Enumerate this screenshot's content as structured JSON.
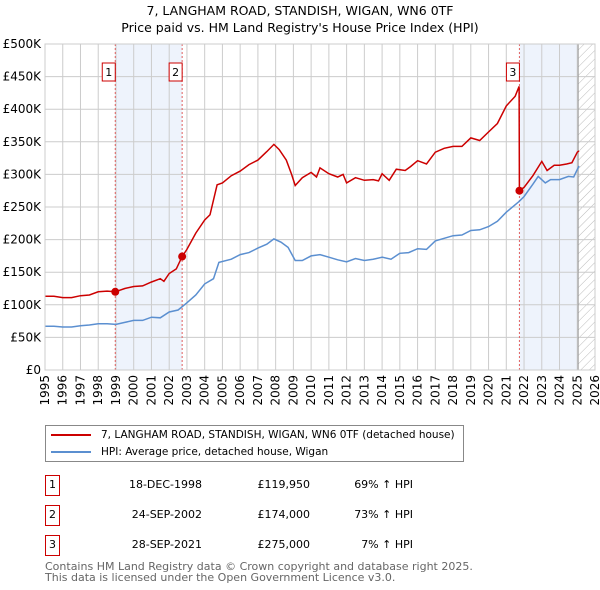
{
  "chart_data": {
    "type": "line",
    "title": "7, LANGHAM ROAD, STANDISH, WIGAN, WN6 0TF",
    "subtitle": "Price paid vs. HM Land Registry's House Price Index (HPI)",
    "xlim": [
      1995,
      2026
    ],
    "ylim": [
      0,
      500000
    ],
    "x_ticks": [
      "1995",
      "1996",
      "1997",
      "1998",
      "1999",
      "2000",
      "2001",
      "2002",
      "2003",
      "2004",
      "2005",
      "2006",
      "2007",
      "2008",
      "2009",
      "2010",
      "2011",
      "2012",
      "2013",
      "2014",
      "2015",
      "2016",
      "2017",
      "2018",
      "2019",
      "2020",
      "2021",
      "2022",
      "2023",
      "2024",
      "2025",
      "2026"
    ],
    "y_ticks": [
      {
        "v": 0,
        "label": "£0"
      },
      {
        "v": 50000,
        "label": "£50K"
      },
      {
        "v": 100000,
        "label": "£100K"
      },
      {
        "v": 150000,
        "label": "£150K"
      },
      {
        "v": 200000,
        "label": "£200K"
      },
      {
        "v": 250000,
        "label": "£250K"
      },
      {
        "v": 300000,
        "label": "£300K"
      },
      {
        "v": 350000,
        "label": "£350K"
      },
      {
        "v": 400000,
        "label": "£400K"
      },
      {
        "v": 450000,
        "label": "£450K"
      },
      {
        "v": 500000,
        "label": "£500K"
      }
    ],
    "grid": true,
    "series": [
      {
        "name": "7, LANGHAM ROAD, STANDISH, WIGAN, WN6 0TF (detached house)",
        "color": "#cc0000",
        "points": [
          [
            1995,
            113
          ],
          [
            1995.5,
            113
          ],
          [
            1996,
            111
          ],
          [
            1996.5,
            111
          ],
          [
            1997,
            114
          ],
          [
            1997.5,
            115
          ],
          [
            1998,
            120
          ],
          [
            1998.5,
            121
          ],
          [
            1998.96,
            120
          ],
          [
            1999.5,
            125
          ],
          [
            2000,
            128
          ],
          [
            2000.5,
            129
          ],
          [
            2001,
            135
          ],
          [
            2001.5,
            140
          ],
          [
            2001.7,
            136
          ],
          [
            2002,
            148
          ],
          [
            2002.4,
            155
          ],
          [
            2002.73,
            174
          ],
          [
            2003,
            185
          ],
          [
            2003.5,
            210
          ],
          [
            2004,
            230
          ],
          [
            2004.3,
            238
          ],
          [
            2004.7,
            284
          ],
          [
            2005,
            287
          ],
          [
            2005.5,
            298
          ],
          [
            2006,
            305
          ],
          [
            2006.5,
            315
          ],
          [
            2007,
            322
          ],
          [
            2007.5,
            335
          ],
          [
            2007.9,
            346
          ],
          [
            2008.2,
            338
          ],
          [
            2008.6,
            322
          ],
          [
            2008.9,
            300
          ],
          [
            2009.1,
            283
          ],
          [
            2009.5,
            295
          ],
          [
            2010,
            303
          ],
          [
            2010.3,
            296
          ],
          [
            2010.5,
            310
          ],
          [
            2011,
            301
          ],
          [
            2011.5,
            296
          ],
          [
            2011.8,
            300
          ],
          [
            2012,
            287
          ],
          [
            2012.5,
            295
          ],
          [
            2013,
            291
          ],
          [
            2013.5,
            292
          ],
          [
            2013.8,
            290
          ],
          [
            2014,
            301
          ],
          [
            2014.4,
            291
          ],
          [
            2014.8,
            308
          ],
          [
            2015.3,
            306
          ],
          [
            2015.6,
            312
          ],
          [
            2016,
            321
          ],
          [
            2016.5,
            316
          ],
          [
            2017,
            334
          ],
          [
            2017.5,
            340
          ],
          [
            2018,
            343
          ],
          [
            2018.5,
            343
          ],
          [
            2019,
            356
          ],
          [
            2019.5,
            352
          ],
          [
            2020,
            365
          ],
          [
            2020.5,
            378
          ],
          [
            2021,
            405
          ],
          [
            2021.5,
            420
          ],
          [
            2021.72,
            435
          ],
          [
            2021.74,
            275
          ],
          [
            2022,
            280
          ],
          [
            2022.5,
            298
          ],
          [
            2023,
            320
          ],
          [
            2023.3,
            306
          ],
          [
            2023.7,
            314
          ],
          [
            2024,
            314
          ],
          [
            2024.4,
            316
          ],
          [
            2024.7,
            318
          ],
          [
            2025,
            334
          ],
          [
            2025.1,
            336
          ]
        ]
      },
      {
        "name": "HPI: Average price, detached house, Wigan",
        "color": "#5b8fd0",
        "points": [
          [
            1995,
            67
          ],
          [
            1995.5,
            67
          ],
          [
            1996,
            66
          ],
          [
            1996.5,
            66
          ],
          [
            1997,
            68
          ],
          [
            1997.5,
            69
          ],
          [
            1998,
            71
          ],
          [
            1998.5,
            71
          ],
          [
            1999,
            70
          ],
          [
            1999.5,
            73
          ],
          [
            2000,
            76
          ],
          [
            2000.5,
            76
          ],
          [
            2001,
            81
          ],
          [
            2001.5,
            80
          ],
          [
            2002,
            89
          ],
          [
            2002.5,
            92
          ],
          [
            2003,
            103
          ],
          [
            2003.5,
            115
          ],
          [
            2004,
            132
          ],
          [
            2004.5,
            140
          ],
          [
            2004.8,
            165
          ],
          [
            2005.5,
            170
          ],
          [
            2006,
            177
          ],
          [
            2006.5,
            180
          ],
          [
            2007,
            187
          ],
          [
            2007.5,
            193
          ],
          [
            2007.9,
            201
          ],
          [
            2008.3,
            196
          ],
          [
            2008.7,
            188
          ],
          [
            2009.1,
            168
          ],
          [
            2009.5,
            168
          ],
          [
            2010,
            175
          ],
          [
            2010.5,
            177
          ],
          [
            2011,
            173
          ],
          [
            2011.5,
            169
          ],
          [
            2012,
            166
          ],
          [
            2012.5,
            171
          ],
          [
            2013,
            168
          ],
          [
            2013.5,
            170
          ],
          [
            2014,
            173
          ],
          [
            2014.5,
            170
          ],
          [
            2015,
            179
          ],
          [
            2015.5,
            180
          ],
          [
            2016,
            186
          ],
          [
            2016.5,
            185
          ],
          [
            2017,
            198
          ],
          [
            2017.5,
            202
          ],
          [
            2018,
            206
          ],
          [
            2018.5,
            207
          ],
          [
            2019,
            214
          ],
          [
            2019.5,
            215
          ],
          [
            2020,
            220
          ],
          [
            2020.5,
            228
          ],
          [
            2021,
            242
          ],
          [
            2021.7,
            258
          ],
          [
            2022,
            266
          ],
          [
            2022.5,
            285
          ],
          [
            2022.8,
            297
          ],
          [
            2023.2,
            287
          ],
          [
            2023.5,
            292
          ],
          [
            2024,
            292
          ],
          [
            2024.5,
            297
          ],
          [
            2024.8,
            296
          ],
          [
            2025.1,
            313
          ]
        ]
      }
    ],
    "sales": [
      {
        "n": "1",
        "x": 1998.96,
        "value": 119950
      },
      {
        "n": "2",
        "x": 2002.73,
        "value": 174000
      },
      {
        "n": "3",
        "x": 2021.74,
        "value": 275000
      }
    ],
    "shaded_ranges": [
      [
        1998.96,
        2002.73
      ],
      [
        2021.74,
        2025.05
      ]
    ],
    "hatched_range": [
      2025.05,
      2026
    ],
    "legend_placement": "below"
  },
  "table": [
    {
      "n": "1",
      "date": "18-DEC-1998",
      "price": "£119,950",
      "hpi": "69% ↑ HPI"
    },
    {
      "n": "2",
      "date": "24-SEP-2002",
      "price": "£174,000",
      "hpi": "73% ↑ HPI"
    },
    {
      "n": "3",
      "date": "28-SEP-2021",
      "price": "£275,000",
      "hpi": "7% ↑ HPI"
    }
  ],
  "footer": {
    "line1": "Contains HM Land Registry data © Crown copyright and database right 2025.",
    "line2": "This data is licensed under the Open Government Licence v3.0."
  }
}
